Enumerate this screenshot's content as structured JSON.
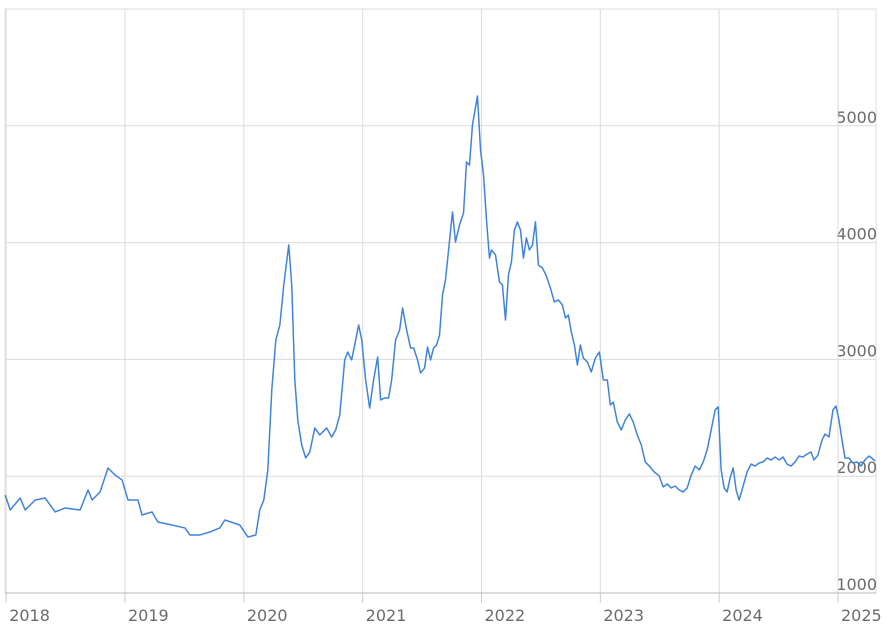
{
  "chart_data": {
    "type": "line",
    "color": "#3f84d8",
    "grid": true,
    "xlim": [
      2017.99,
      2025.32
    ],
    "xticks": [
      2018,
      2019,
      2020,
      2021,
      2022,
      2023,
      2024,
      2025
    ],
    "ylim": [
      1000,
      6000
    ],
    "yticks": [
      1000,
      2000,
      3000,
      4000,
      5000
    ],
    "x": [
      2017.992,
      2018.034,
      2018.118,
      2018.16,
      2018.244,
      2018.328,
      2018.412,
      2018.496,
      2018.622,
      2018.689,
      2018.723,
      2018.79,
      2018.857,
      2018.916,
      2018.975,
      2019.025,
      2019.109,
      2019.143,
      2019.227,
      2019.277,
      2019.395,
      2019.504,
      2019.546,
      2019.63,
      2019.714,
      2019.798,
      2019.84,
      2019.966,
      2020.034,
      2020.101,
      2020.134,
      2020.168,
      2020.202,
      2020.235,
      2020.269,
      2020.303,
      2020.336,
      2020.378,
      2020.403,
      2020.429,
      2020.454,
      2020.487,
      2020.521,
      2020.555,
      2020.597,
      2020.639,
      2020.697,
      2020.739,
      2020.773,
      2020.807,
      2020.849,
      2020.874,
      2020.907,
      2020.933,
      2020.966,
      2020.992,
      2021.025,
      2021.059,
      2021.092,
      2021.126,
      2021.151,
      2021.185,
      2021.218,
      2021.244,
      2021.277,
      2021.311,
      2021.336,
      2021.37,
      2021.403,
      2021.429,
      2021.462,
      2021.487,
      2021.521,
      2021.546,
      2021.571,
      2021.597,
      2021.622,
      2021.647,
      2021.672,
      2021.697,
      2021.723,
      2021.756,
      2021.781,
      2021.815,
      2021.849,
      2021.874,
      2021.899,
      2021.924,
      2021.95,
      2021.966,
      2021.992,
      2022.017,
      2022.042,
      2022.067,
      2022.084,
      2022.118,
      2022.151,
      2022.176,
      2022.202,
      2022.227,
      2022.252,
      2022.277,
      2022.302,
      2022.328,
      2022.353,
      2022.378,
      2022.403,
      2022.429,
      2022.454,
      2022.479,
      2022.513,
      2022.546,
      2022.58,
      2022.613,
      2022.647,
      2022.681,
      2022.706,
      2022.731,
      2022.756,
      2022.782,
      2022.807,
      2022.832,
      2022.857,
      2022.891,
      2022.924,
      2022.958,
      2022.992,
      2023.025,
      2023.059,
      2023.084,
      2023.109,
      2023.143,
      2023.176,
      2023.21,
      2023.244,
      2023.277,
      2023.311,
      2023.345,
      2023.378,
      2023.412,
      2023.454,
      2023.496,
      2023.529,
      2023.563,
      2023.597,
      2023.63,
      2023.664,
      2023.697,
      2023.731,
      2023.765,
      2023.798,
      2023.832,
      2023.866,
      2023.899,
      2023.933,
      2023.966,
      2023.992,
      2024.017,
      2024.042,
      2024.067,
      2024.092,
      2024.118,
      2024.143,
      2024.168,
      2024.202,
      2024.235,
      2024.269,
      2024.303,
      2024.336,
      2024.37,
      2024.403,
      2024.437,
      2024.471,
      2024.504,
      2024.538,
      2024.571,
      2024.605,
      2024.639,
      2024.672,
      2024.706,
      2024.739,
      2024.773,
      2024.798,
      2024.832,
      2024.866,
      2024.891,
      2024.924,
      2024.958,
      2024.983,
      2025.008,
      2025.034,
      2025.059,
      2025.092,
      2025.126,
      2025.16,
      2025.193,
      2025.227,
      2025.261,
      2025.294,
      2025.311
    ],
    "values": [
      1839,
      1711,
      1813,
      1711,
      1796,
      1813,
      1694,
      1728,
      1711,
      1882,
      1796,
      1865,
      2070,
      2010,
      1968,
      1796,
      1796,
      1668,
      1694,
      1608,
      1582,
      1557,
      1497,
      1497,
      1522,
      1557,
      1625,
      1582,
      1479,
      1497,
      1711,
      1796,
      2053,
      2738,
      3166,
      3295,
      3637,
      3980,
      3637,
      2824,
      2481,
      2267,
      2156,
      2207,
      2413,
      2353,
      2413,
      2336,
      2396,
      2524,
      2995,
      3063,
      2995,
      3123,
      3295,
      3166,
      2824,
      2584,
      2824,
      3021,
      2653,
      2670,
      2670,
      2824,
      3166,
      3252,
      3440,
      3252,
      3098,
      3098,
      2995,
      2884,
      2926,
      3106,
      2995,
      3098,
      3123,
      3209,
      3551,
      3680,
      3937,
      4262,
      4005,
      4151,
      4254,
      4690,
      4664,
      5007,
      5161,
      5255,
      4793,
      4579,
      4194,
      3868,
      3937,
      3894,
      3663,
      3637,
      3337,
      3723,
      3834,
      4108,
      4177,
      4108,
      3868,
      4040,
      3937,
      3980,
      4177,
      3808,
      3783,
      3714,
      3611,
      3492,
      3509,
      3466,
      3355,
      3380,
      3235,
      3123,
      2952,
      3123,
      3012,
      2978,
      2892,
      3012,
      3063,
      2824,
      2824,
      2610,
      2635,
      2464,
      2396,
      2481,
      2533,
      2464,
      2353,
      2267,
      2122,
      2087,
      2036,
      2002,
      1908,
      1933,
      1899,
      1916,
      1882,
      1865,
      1899,
      2010,
      2087,
      2053,
      2122,
      2224,
      2396,
      2567,
      2593,
      2053,
      1899,
      1865,
      1985,
      2070,
      1882,
      1796,
      1916,
      2036,
      2104,
      2087,
      2113,
      2122,
      2156,
      2139,
      2164,
      2139,
      2164,
      2104,
      2087,
      2122,
      2173,
      2164,
      2190,
      2207,
      2139,
      2182,
      2310,
      2361,
      2336,
      2567,
      2601,
      2481,
      2310,
      2156,
      2156,
      2113,
      2122,
      2087,
      2139,
      2173,
      2147,
      2130
    ]
  }
}
